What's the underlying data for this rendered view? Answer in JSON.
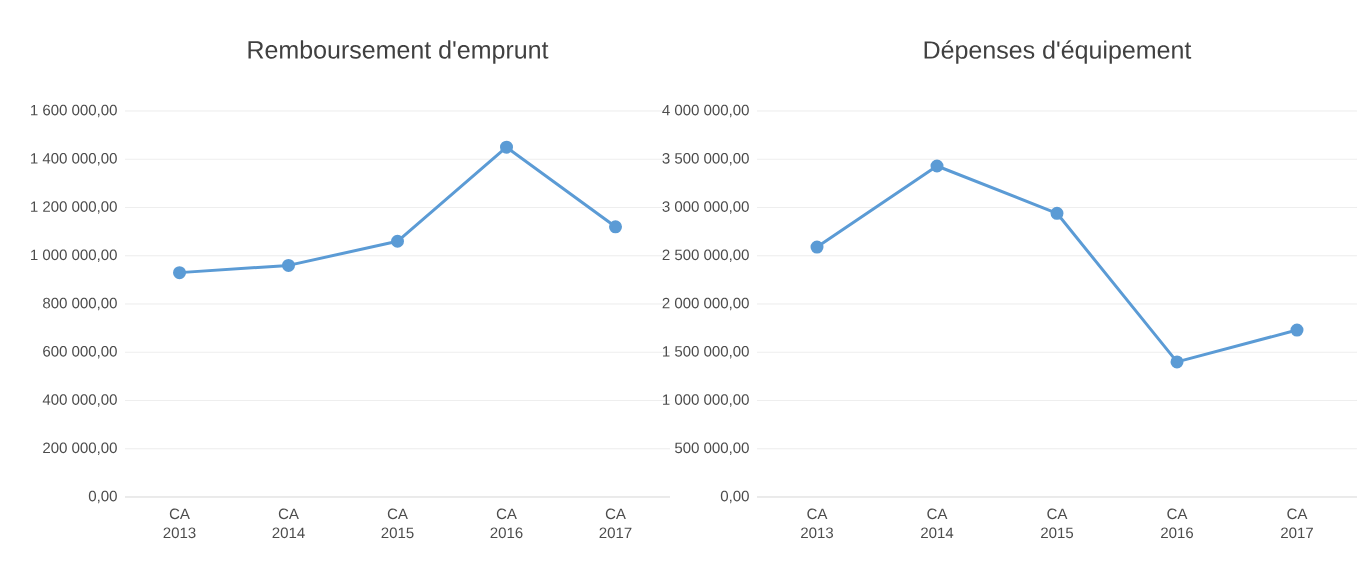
{
  "chart_data": [
    {
      "type": "line",
      "title": "Remboursement d'emprunt",
      "categories": [
        "CA 2013",
        "CA 2014",
        "CA 2015",
        "CA 2016",
        "CA 2017"
      ],
      "values": [
        930000,
        960000,
        1060000,
        1450000,
        1120000
      ],
      "color": "#5b9bd5",
      "marker": "circle",
      "grid": "y",
      "ylim": [
        0,
        1600000
      ],
      "yticks": [
        {
          "value": 0,
          "label": "0,00"
        },
        {
          "value": 200000,
          "label": "200 000,00"
        },
        {
          "value": 400000,
          "label": "400 000,00"
        },
        {
          "value": 600000,
          "label": "600 000,00"
        },
        {
          "value": 800000,
          "label": "800 000,00"
        },
        {
          "value": 1000000,
          "label": "1 000 000,00"
        },
        {
          "value": 1200000,
          "label": "1 200 000,00"
        },
        {
          "value": 1400000,
          "label": "1 400 000,00"
        },
        {
          "value": 1600000,
          "label": "1 600 000,00"
        }
      ]
    },
    {
      "type": "line",
      "title": "Dépenses d'équipement",
      "categories": [
        "CA 2013",
        "CA 2014",
        "CA 2015",
        "CA 2016",
        "CA 2017"
      ],
      "values": [
        2590000,
        3430000,
        2940000,
        1400000,
        1730000
      ],
      "color": "#5b9bd5",
      "marker": "circle",
      "grid": "y",
      "ylim": [
        0,
        4000000
      ],
      "yticks": [
        {
          "value": 0,
          "label": "0,00"
        },
        {
          "value": 500000,
          "label": "500 000,00"
        },
        {
          "value": 1000000,
          "label": "1 000 000,00"
        },
        {
          "value": 1500000,
          "label": "1 500 000,00"
        },
        {
          "value": 2000000,
          "label": "2 000 000,00"
        },
        {
          "value": 2500000,
          "label": "2 500 000,00"
        },
        {
          "value": 3000000,
          "label": "3 000 000,00"
        },
        {
          "value": 3500000,
          "label": "3 500 000,00"
        },
        {
          "value": 4000000,
          "label": "4 000 000,00"
        }
      ]
    }
  ]
}
